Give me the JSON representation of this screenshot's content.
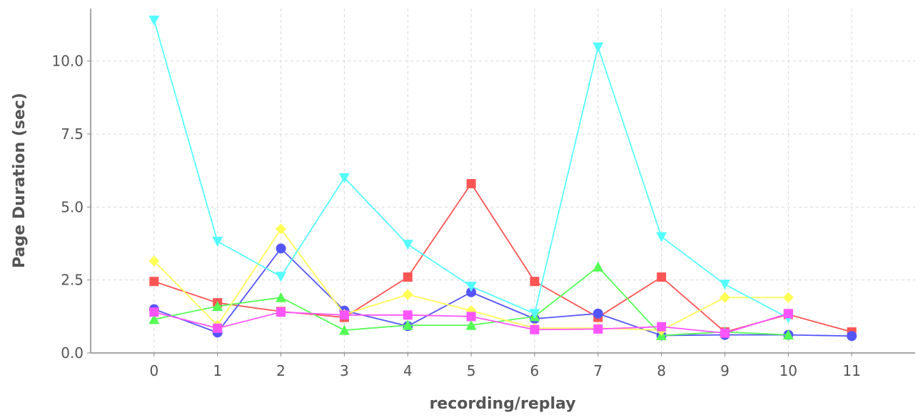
{
  "chart_data": {
    "type": "line",
    "title": "",
    "xlabel": "recording/replay",
    "ylabel": "Page Duration (sec)",
    "x": [
      0,
      1,
      2,
      3,
      4,
      5,
      6,
      7,
      8,
      9,
      10,
      11
    ],
    "x_tick_labels": [
      "0",
      "1",
      "2",
      "3",
      "4",
      "5",
      "6",
      "7",
      "8",
      "9",
      "10",
      "11"
    ],
    "xlim": [
      -1,
      12
    ],
    "ylim": [
      0,
      11.8
    ],
    "y_ticks": [
      0,
      2.5,
      5,
      7.5,
      10
    ],
    "y_tick_labels": [
      "0.0",
      "2.5",
      "5.0",
      "7.5",
      "10.0"
    ],
    "grid": true,
    "legend": "none",
    "series": [
      {
        "color": "#ff5555",
        "marker": "square",
        "x": [
          0,
          1,
          2,
          3,
          4,
          5,
          6,
          7,
          8,
          9,
          10,
          11
        ],
        "values": [
          2.45,
          1.72,
          1.42,
          1.22,
          2.6,
          5.8,
          2.45,
          1.22,
          2.6,
          0.72,
          1.32,
          0.72
        ]
      },
      {
        "color": "#5555ff",
        "marker": "circle",
        "x": [
          0,
          1,
          2,
          3,
          4,
          5,
          6,
          7,
          8,
          9,
          10,
          11
        ],
        "values": [
          1.5,
          0.7,
          3.58,
          1.45,
          0.92,
          2.08,
          1.17,
          1.35,
          0.6,
          0.62,
          0.62,
          0.58
        ]
      },
      {
        "color": "#55ff55",
        "marker": "triangle-up",
        "x": [
          0,
          1,
          2,
          3,
          4,
          5,
          6,
          7,
          8,
          9,
          10
        ],
        "values": [
          1.15,
          1.6,
          1.9,
          0.78,
          0.95,
          0.95,
          1.25,
          2.95,
          0.6,
          0.72,
          0.62
        ]
      },
      {
        "color": "#ffff55",
        "marker": "diamond",
        "x": [
          0,
          1,
          2,
          3,
          4,
          5,
          6,
          7,
          8,
          9,
          10
        ],
        "values": [
          3.15,
          0.95,
          4.25,
          1.32,
          2.0,
          1.45,
          0.85,
          0.85,
          0.78,
          1.9,
          1.9
        ]
      },
      {
        "color": "#55ffff",
        "marker": "triangle-down",
        "x": [
          0,
          1,
          2,
          3,
          4,
          5,
          6,
          7,
          8,
          9,
          10
        ],
        "values": [
          11.4,
          3.82,
          2.62,
          6.0,
          3.72,
          2.28,
          1.35,
          10.48,
          3.98,
          2.35,
          1.2
        ]
      },
      {
        "color": "#ff55ff",
        "marker": "square",
        "x": [
          0,
          1,
          2,
          3,
          4,
          5,
          6,
          7,
          8,
          9,
          10
        ],
        "values": [
          1.4,
          0.85,
          1.4,
          1.3,
          1.3,
          1.25,
          0.8,
          0.82,
          0.9,
          0.68,
          1.35
        ]
      }
    ]
  }
}
